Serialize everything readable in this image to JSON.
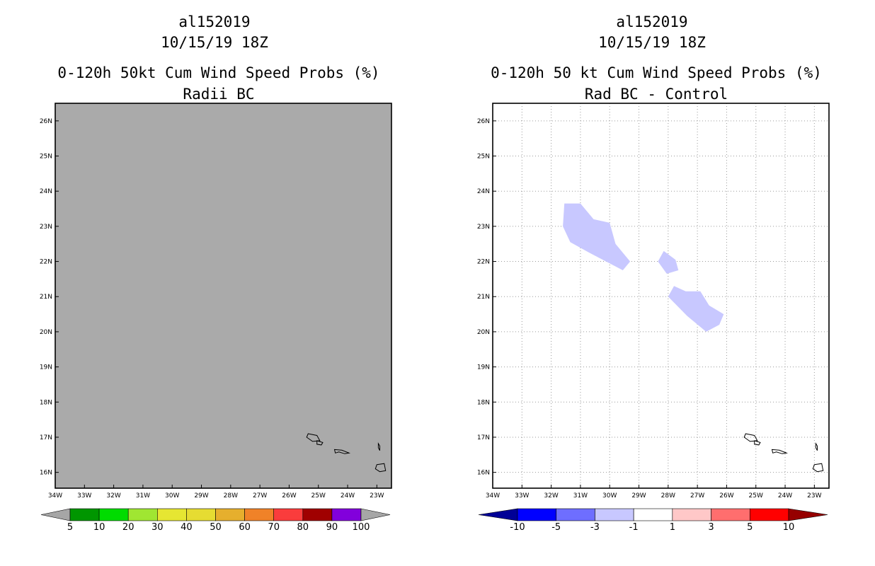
{
  "left": {
    "storm_id": "al152019",
    "date": "10/15/19 18Z",
    "title": "0-120h 50kt Cum Wind Speed Probs (%)",
    "subtitle": "Radii BC",
    "field_color": "#aaaaaa"
  },
  "right": {
    "storm_id": "al152019",
    "date": "10/15/19 18Z",
    "title": "0-120h 50 kt Cum Wind Speed Probs (%)",
    "subtitle": "Rad BC - Control",
    "difference_fill_color": "#c8c8ff"
  },
  "axes": {
    "lon_labels": [
      "34W",
      "33W",
      "32W",
      "31W",
      "30W",
      "29W",
      "28W",
      "27W",
      "26W",
      "25W",
      "24W",
      "23W"
    ],
    "lat_labels": [
      "16N",
      "17N",
      "18N",
      "19N",
      "20N",
      "21N",
      "22N",
      "23N",
      "24N",
      "25N",
      "26N"
    ],
    "lon_range": [
      -34,
      -22.5
    ],
    "lat_range": [
      15.55,
      26.5
    ]
  },
  "colorbar_left": {
    "colors": [
      "#a6a6a6",
      "#009600",
      "#00dc00",
      "#a0e632",
      "#e6e632",
      "#e6dc32",
      "#e6af2d",
      "#f08228",
      "#fa3c3c",
      "#a00000",
      "#8200dc",
      "#a6a6a6"
    ],
    "labels": [
      "5",
      "10",
      "20",
      "30",
      "40",
      "50",
      "60",
      "70",
      "80",
      "90",
      "100"
    ]
  },
  "colorbar_right": {
    "colors": [
      "#000096",
      "#0000ff",
      "#6e6eff",
      "#c8c8ff",
      "#ffffff",
      "#ffc8c8",
      "#ff6e6e",
      "#ff0000",
      "#960000"
    ],
    "labels": [
      "-10",
      "-5",
      "-3",
      "-1",
      "1",
      "3",
      "5",
      "10"
    ]
  },
  "difference_regions": [
    {
      "name": "northwest-lobe",
      "points": [
        [
          -31.55,
          23.65
        ],
        [
          -31.0,
          23.65
        ],
        [
          -30.55,
          23.2
        ],
        [
          -30.0,
          23.1
        ],
        [
          -29.8,
          22.5
        ],
        [
          -29.3,
          22.0
        ],
        [
          -29.55,
          21.75
        ],
        [
          -30.7,
          22.25
        ],
        [
          -31.35,
          22.55
        ],
        [
          -31.6,
          23.0
        ]
      ]
    },
    {
      "name": "central-patch",
      "points": [
        [
          -28.15,
          22.3
        ],
        [
          -27.75,
          22.05
        ],
        [
          -27.65,
          21.75
        ],
        [
          -28.05,
          21.65
        ],
        [
          -28.35,
          22.0
        ]
      ]
    },
    {
      "name": "southeast-lobe",
      "points": [
        [
          -27.8,
          21.3
        ],
        [
          -27.4,
          21.15
        ],
        [
          -26.9,
          21.15
        ],
        [
          -26.6,
          20.75
        ],
        [
          -26.1,
          20.5
        ],
        [
          -26.25,
          20.2
        ],
        [
          -26.7,
          20.0
        ],
        [
          -27.35,
          20.45
        ],
        [
          -28.0,
          21.0
        ]
      ]
    }
  ],
  "islands": [
    {
      "name": "santo-antao",
      "points": [
        [
          -25.35,
          17.1
        ],
        [
          -25.05,
          17.05
        ],
        [
          -24.95,
          16.9
        ],
        [
          -25.2,
          16.88
        ],
        [
          -25.4,
          17.0
        ]
      ]
    },
    {
      "name": "sao-vicente",
      "points": [
        [
          -25.05,
          16.9
        ],
        [
          -24.85,
          16.85
        ],
        [
          -24.9,
          16.78
        ],
        [
          -25.05,
          16.8
        ]
      ]
    },
    {
      "name": "sao-nicolau",
      "points": [
        [
          -24.45,
          16.65
        ],
        [
          -24.2,
          16.63
        ],
        [
          -23.95,
          16.55
        ],
        [
          -24.1,
          16.53
        ],
        [
          -24.3,
          16.58
        ],
        [
          -24.42,
          16.55
        ]
      ]
    },
    {
      "name": "boa-vista-sal",
      "points": [
        [
          -22.95,
          16.82
        ],
        [
          -22.9,
          16.75
        ],
        [
          -22.9,
          16.62
        ],
        [
          -22.95,
          16.7
        ]
      ]
    },
    {
      "name": "boa-vista",
      "points": [
        [
          -23.0,
          16.22
        ],
        [
          -22.75,
          16.25
        ],
        [
          -22.7,
          16.05
        ],
        [
          -22.9,
          16.02
        ],
        [
          -23.05,
          16.1
        ]
      ]
    }
  ]
}
